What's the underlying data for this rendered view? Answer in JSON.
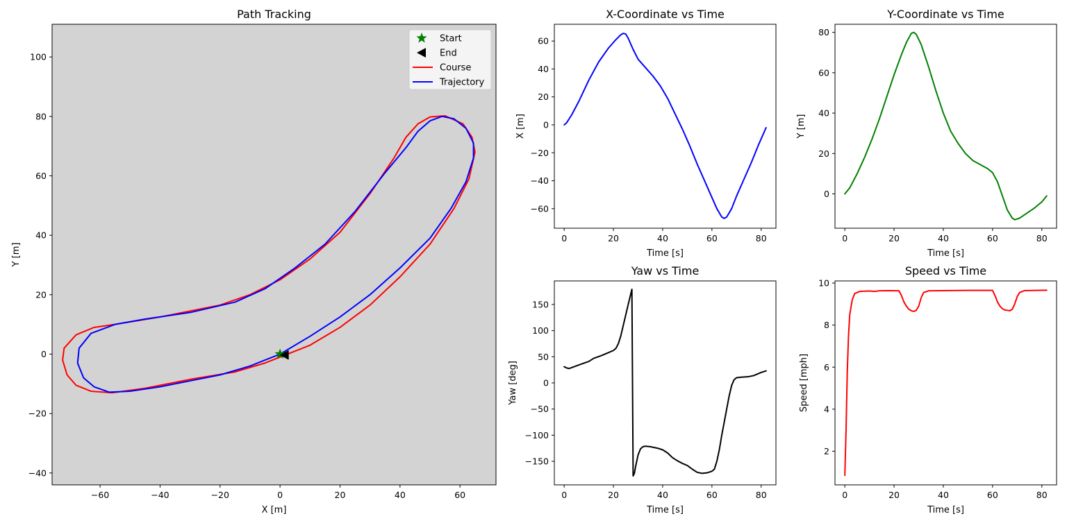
{
  "chart_data": [
    {
      "id": "path",
      "type": "line",
      "title": "Path Tracking",
      "xlabel": "X [m]",
      "ylabel": "Y [m]",
      "xlim": [
        -76,
        72
      ],
      "ylim": [
        -44,
        111
      ],
      "xticks": [
        -60,
        -40,
        -20,
        0,
        20,
        40,
        60
      ],
      "yticks": [
        -40,
        -20,
        0,
        20,
        40,
        60,
        80,
        100
      ],
      "background": "#d3d3d3",
      "legend": {
        "placement": "top-right",
        "entries": [
          "Start",
          "End",
          "Course",
          "Trajectory"
        ]
      },
      "markers": [
        {
          "name": "Start",
          "shape": "star",
          "color": "#008000",
          "x": 0,
          "y": 0
        },
        {
          "name": "End",
          "shape": "triangle-left",
          "color": "#000000",
          "x": 1.5,
          "y": -0.3
        }
      ],
      "series": [
        {
          "name": "Course",
          "color": "#ff0000",
          "points": [
            [
              0,
              -1
            ],
            [
              10,
              3
            ],
            [
              20,
              9
            ],
            [
              30,
              16.5
            ],
            [
              40,
              26
            ],
            [
              50,
              37
            ],
            [
              58,
              49
            ],
            [
              63,
              59
            ],
            [
              65,
              68
            ],
            [
              64,
              73
            ],
            [
              61,
              77.5
            ],
            [
              55,
              80.2
            ],
            [
              50,
              79.8
            ],
            [
              46,
              77.5
            ],
            [
              42,
              73
            ],
            [
              38,
              66
            ],
            [
              30,
              54
            ],
            [
              20,
              41
            ],
            [
              10,
              32
            ],
            [
              0,
              25
            ],
            [
              -10,
              20
            ],
            [
              -20,
              16.5
            ],
            [
              -40,
              12.5
            ],
            [
              -55,
              10
            ],
            [
              -62,
              9
            ],
            [
              -68,
              6.5
            ],
            [
              -72,
              2
            ],
            [
              -72.5,
              -2
            ],
            [
              -71,
              -7
            ],
            [
              -68,
              -10.5
            ],
            [
              -63,
              -12.5
            ],
            [
              -56,
              -13
            ],
            [
              -45,
              -11.5
            ],
            [
              -30,
              -8.5
            ],
            [
              -15,
              -6
            ],
            [
              -5,
              -3
            ],
            [
              0,
              -1
            ]
          ]
        },
        {
          "name": "Trajectory",
          "color": "#0000ff",
          "points": [
            [
              0,
              0
            ],
            [
              10,
              6
            ],
            [
              20,
              12.5
            ],
            [
              30,
              20
            ],
            [
              40,
              29
            ],
            [
              50,
              39
            ],
            [
              57,
              49
            ],
            [
              62,
              58
            ],
            [
              64.5,
              66
            ],
            [
              64.5,
              71
            ],
            [
              62,
              76
            ],
            [
              58,
              79.2
            ],
            [
              54,
              80
            ],
            [
              50,
              78.5
            ],
            [
              46,
              75
            ],
            [
              42,
              69.5
            ],
            [
              35,
              61
            ],
            [
              25,
              48
            ],
            [
              15,
              37
            ],
            [
              5,
              29
            ],
            [
              -5,
              22
            ],
            [
              -15,
              17.5
            ],
            [
              -30,
              14
            ],
            [
              -45,
              11.8
            ],
            [
              -55,
              10
            ],
            [
              -63,
              7
            ],
            [
              -67,
              2
            ],
            [
              -67.5,
              -3
            ],
            [
              -65.5,
              -8
            ],
            [
              -62,
              -11
            ],
            [
              -57,
              -12.8
            ],
            [
              -50,
              -12.5
            ],
            [
              -40,
              -11
            ],
            [
              -30,
              -9
            ],
            [
              -20,
              -7
            ],
            [
              -10,
              -4
            ],
            [
              -5,
              -2
            ],
            [
              0,
              0
            ]
          ]
        }
      ]
    },
    {
      "id": "xcoord",
      "type": "line",
      "title": "X-Coordinate vs Time",
      "xlabel": "Time [s]",
      "ylabel": "X [m]",
      "xlim": [
        -4,
        86
      ],
      "ylim": [
        -74,
        72
      ],
      "xticks": [
        0,
        20,
        40,
        60,
        80
      ],
      "yticks": [
        -60,
        -40,
        -20,
        0,
        20,
        40,
        60
      ],
      "series": [
        {
          "name": "",
          "color": "#0000ff",
          "points": [
            [
              0,
              0
            ],
            [
              1,
              1.5
            ],
            [
              3,
              7
            ],
            [
              6,
              17
            ],
            [
              10,
              32
            ],
            [
              14,
              45
            ],
            [
              18,
              55
            ],
            [
              21,
              61
            ],
            [
              23,
              64.5
            ],
            [
              24,
              65.5
            ],
            [
              25,
              65
            ],
            [
              26,
              62
            ],
            [
              28,
              54
            ],
            [
              30,
              47
            ],
            [
              33,
              41
            ],
            [
              36,
              35
            ],
            [
              39,
              28
            ],
            [
              42,
              19
            ],
            [
              45,
              8
            ],
            [
              48,
              -3
            ],
            [
              51,
              -15
            ],
            [
              54,
              -28
            ],
            [
              57,
              -40
            ],
            [
              60,
              -52
            ],
            [
              62,
              -60
            ],
            [
              64,
              -66
            ],
            [
              65,
              -67
            ],
            [
              66,
              -66
            ],
            [
              68,
              -60
            ],
            [
              70,
              -51
            ],
            [
              73,
              -39
            ],
            [
              76,
              -27
            ],
            [
              79,
              -14
            ],
            [
              82,
              -2
            ]
          ]
        }
      ]
    },
    {
      "id": "ycoord",
      "type": "line",
      "title": "Y-Coordinate vs Time",
      "xlabel": "Time [s]",
      "ylabel": "Y [m]",
      "xlim": [
        -4,
        86
      ],
      "ylim": [
        -17,
        84
      ],
      "xticks": [
        0,
        20,
        40,
        60,
        80
      ],
      "yticks": [
        0,
        20,
        40,
        60,
        80
      ],
      "series": [
        {
          "name": "",
          "color": "#008000",
          "points": [
            [
              0,
              0
            ],
            [
              2,
              3
            ],
            [
              5,
              10
            ],
            [
              8,
              18
            ],
            [
              11,
              27
            ],
            [
              14,
              37
            ],
            [
              17,
              48
            ],
            [
              20,
              59
            ],
            [
              23,
              69
            ],
            [
              25,
              75
            ],
            [
              27,
              79.5
            ],
            [
              28,
              80
            ],
            [
              29,
              79
            ],
            [
              31,
              74
            ],
            [
              34,
              63
            ],
            [
              37,
              51
            ],
            [
              40,
              40
            ],
            [
              43,
              31
            ],
            [
              46,
              25
            ],
            [
              49,
              20
            ],
            [
              52,
              16.5
            ],
            [
              55,
              14.5
            ],
            [
              58,
              12.5
            ],
            [
              60,
              10.5
            ],
            [
              62,
              6
            ],
            [
              64,
              -1
            ],
            [
              66,
              -8
            ],
            [
              68,
              -12
            ],
            [
              69,
              -12.8
            ],
            [
              71,
              -12
            ],
            [
              74,
              -9.5
            ],
            [
              77,
              -7
            ],
            [
              80,
              -4
            ],
            [
              82,
              -1
            ]
          ]
        }
      ]
    },
    {
      "id": "yaw",
      "type": "line",
      "title": "Yaw vs Time",
      "xlabel": "Time [s]",
      "ylabel": "Yaw [deg]",
      "xlim": [
        -4,
        86
      ],
      "ylim": [
        -195,
        195
      ],
      "xticks": [
        0,
        20,
        40,
        60,
        80
      ],
      "yticks": [
        -150,
        -100,
        -50,
        0,
        50,
        100,
        150
      ],
      "series": [
        {
          "name": "",
          "color": "#000000",
          "points": [
            [
              0,
              31
            ],
            [
              1,
              28.5
            ],
            [
              2,
              27.5
            ],
            [
              4,
              31
            ],
            [
              7,
              36
            ],
            [
              10,
              41
            ],
            [
              11,
              44
            ],
            [
              12,
              47
            ],
            [
              15,
              52
            ],
            [
              18,
              58
            ],
            [
              20,
              62
            ],
            [
              21,
              66
            ],
            [
              22,
              75
            ],
            [
              23,
              90
            ],
            [
              24,
              110
            ],
            [
              25,
              130
            ],
            [
              26,
              150
            ],
            [
              27.5,
              179
            ],
            [
              28,
              -178
            ],
            [
              28.5,
              -173
            ],
            [
              29,
              -160
            ],
            [
              30,
              -138
            ],
            [
              31,
              -126
            ],
            [
              32,
              -122
            ],
            [
              33,
              -121
            ],
            [
              35,
              -122
            ],
            [
              38,
              -125
            ],
            [
              40,
              -128
            ],
            [
              42,
              -134
            ],
            [
              44,
              -143
            ],
            [
              46,
              -149
            ],
            [
              48,
              -154
            ],
            [
              50,
              -158
            ],
            [
              52,
              -165
            ],
            [
              54,
              -171
            ],
            [
              56,
              -173
            ],
            [
              58,
              -172
            ],
            [
              60,
              -169
            ],
            [
              61,
              -165
            ],
            [
              62,
              -150
            ],
            [
              63,
              -128
            ],
            [
              64,
              -100
            ],
            [
              65,
              -75
            ],
            [
              66,
              -50
            ],
            [
              67,
              -25
            ],
            [
              68,
              -5
            ],
            [
              69,
              6
            ],
            [
              70,
              10
            ],
            [
              72,
              11
            ],
            [
              75,
              12
            ],
            [
              77,
              14
            ],
            [
              80,
              20
            ],
            [
              82,
              23
            ]
          ]
        }
      ]
    },
    {
      "id": "speed",
      "type": "line",
      "title": "Speed vs Time",
      "xlabel": "Time [s]",
      "ylabel": "Speed [mph]",
      "xlim": [
        -4,
        86
      ],
      "ylim": [
        0.4,
        10.1
      ],
      "xticks": [
        0,
        20,
        40,
        60,
        80
      ],
      "yticks": [
        2,
        4,
        6,
        8,
        10
      ],
      "series": [
        {
          "name": "",
          "color": "#ff0000",
          "points": [
            [
              0,
              0.85
            ],
            [
              0.5,
              3
            ],
            [
              1,
              5.8
            ],
            [
              1.5,
              7.5
            ],
            [
              2,
              8.5
            ],
            [
              3,
              9.2
            ],
            [
              4,
              9.5
            ],
            [
              6,
              9.6
            ],
            [
              10,
              9.62
            ],
            [
              12,
              9.6
            ],
            [
              14,
              9.63
            ],
            [
              18,
              9.64
            ],
            [
              22,
              9.63
            ],
            [
              23,
              9.4
            ],
            [
              24,
              9.1
            ],
            [
              25,
              8.9
            ],
            [
              26,
              8.75
            ],
            [
              27,
              8.68
            ],
            [
              28,
              8.65
            ],
            [
              29,
              8.7
            ],
            [
              30,
              8.9
            ],
            [
              31,
              9.3
            ],
            [
              32,
              9.55
            ],
            [
              34,
              9.63
            ],
            [
              40,
              9.64
            ],
            [
              50,
              9.65
            ],
            [
              60,
              9.65
            ],
            [
              61,
              9.4
            ],
            [
              62,
              9.1
            ],
            [
              63,
              8.9
            ],
            [
              64,
              8.78
            ],
            [
              65,
              8.72
            ],
            [
              66,
              8.7
            ],
            [
              67,
              8.68
            ],
            [
              68,
              8.75
            ],
            [
              69,
              9.0
            ],
            [
              70,
              9.35
            ],
            [
              71,
              9.55
            ],
            [
              73,
              9.64
            ],
            [
              78,
              9.65
            ],
            [
              82,
              9.66
            ]
          ]
        }
      ]
    }
  ]
}
